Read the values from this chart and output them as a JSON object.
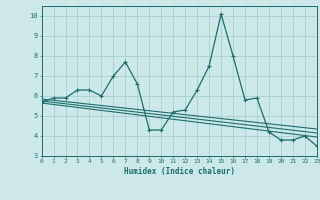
{
  "xlabel": "Humidex (Indice chaleur)",
  "xlim": [
    0,
    23
  ],
  "ylim": [
    3,
    10.5
  ],
  "yticks": [
    3,
    4,
    5,
    6,
    7,
    8,
    9,
    10
  ],
  "xticks": [
    0,
    1,
    2,
    3,
    4,
    5,
    6,
    7,
    8,
    9,
    10,
    11,
    12,
    13,
    14,
    15,
    16,
    17,
    18,
    19,
    20,
    21,
    22,
    23
  ],
  "bg_color": "#cde8e8",
  "grid_color": "#aacfcf",
  "line_color": "#1a6e6e",
  "main_x": [
    0,
    1,
    2,
    3,
    4,
    5,
    6,
    7,
    8,
    9,
    10,
    11,
    12,
    13,
    14,
    15,
    16,
    17,
    18,
    19,
    20,
    21,
    22,
    23
  ],
  "main_y": [
    5.7,
    5.9,
    5.9,
    6.3,
    6.3,
    6.0,
    7.0,
    7.7,
    6.6,
    4.3,
    4.3,
    5.2,
    5.3,
    6.3,
    7.5,
    10.1,
    8.0,
    5.8,
    5.9,
    4.2,
    3.8,
    3.8,
    4.0,
    3.5
  ],
  "trend1_x": [
    0,
    23
  ],
  "trend1_y": [
    5.85,
    4.35
  ],
  "trend2_x": [
    0,
    23
  ],
  "trend2_y": [
    5.75,
    4.15
  ],
  "trend3_x": [
    0,
    23
  ],
  "trend3_y": [
    5.65,
    3.95
  ]
}
